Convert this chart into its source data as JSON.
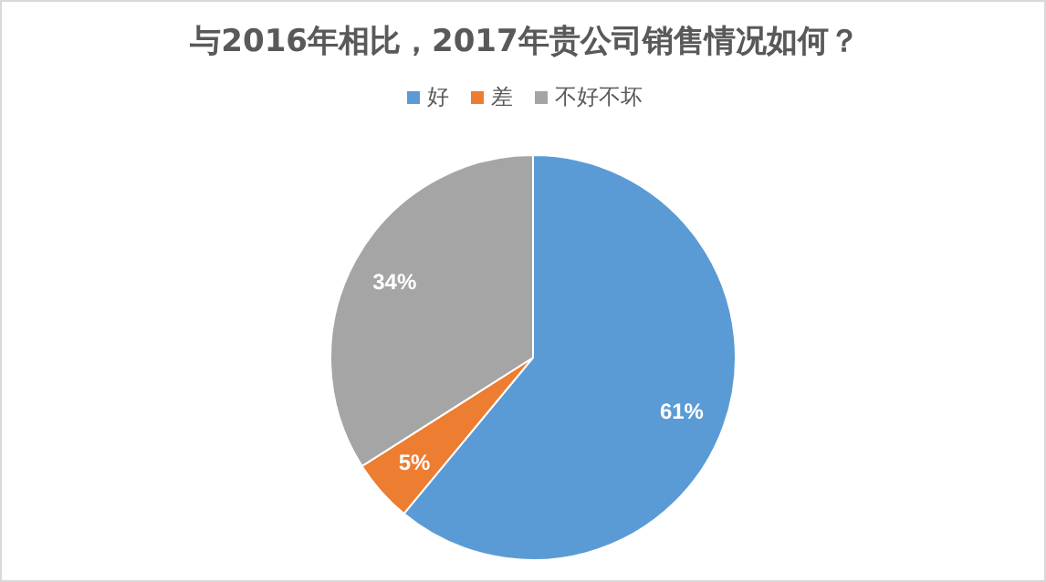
{
  "chart_data": {
    "type": "pie",
    "title": "与2016年相比，2017年贵公司销售情况如何？",
    "categories": [
      "好",
      "差",
      "不好不坏"
    ],
    "values": [
      61,
      5,
      34
    ],
    "colors": [
      "#5b9bd5",
      "#ed7d31",
      "#a5a5a5"
    ],
    "value_labels": [
      "61%",
      "5%",
      "34%"
    ],
    "legend": "top"
  }
}
